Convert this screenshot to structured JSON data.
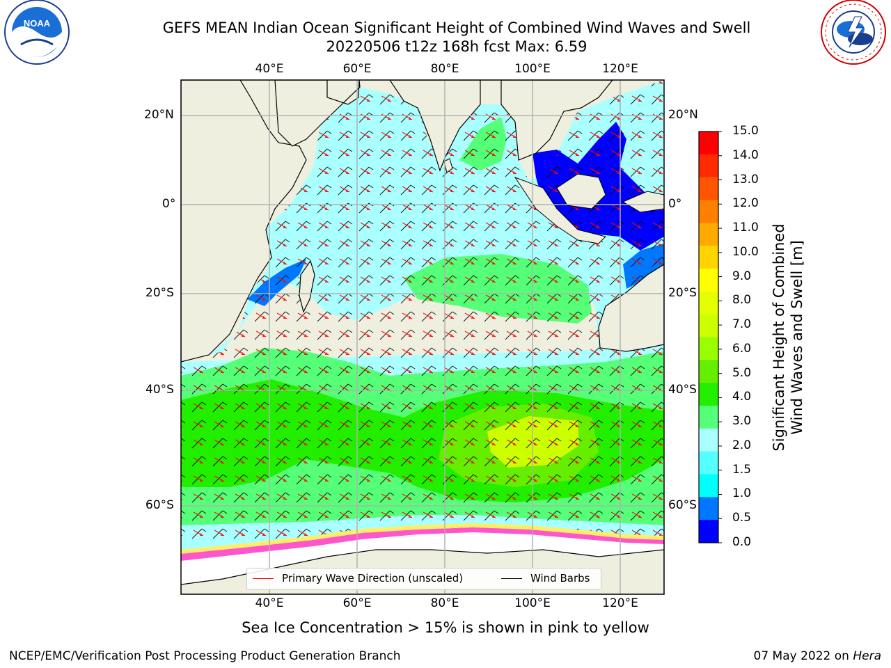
{
  "title": {
    "line1": "GEFS MEAN Indian Ocean Significant Height of Combined Wind Waves and Swell",
    "line2": "20220506 t12z 168h fcst   Max: 6.59"
  },
  "map": {
    "lon_labels": [
      "40°E",
      "60°E",
      "80°E",
      "100°E",
      "120°E"
    ],
    "lat_labels_left": [
      "20°N",
      "0°",
      "20°S",
      "40°S",
      "60°S"
    ],
    "lat_labels_right": [
      "20°N",
      "0°",
      "20°S",
      "40°S",
      "60°S"
    ],
    "land_color": "#efefdf",
    "ocean_base_color": "#aaffff"
  },
  "colorbar": {
    "label_line1": "Significant Height of Combined",
    "label_line2": "Wind Waves and Swell [m]",
    "ticks": [
      "15.0",
      "14.0",
      "13.0",
      "12.0",
      "11.0",
      "10.0",
      "9.0",
      "8.0",
      "7.0",
      "6.0",
      "5.0",
      "4.0",
      "3.0",
      "2.0",
      "1.5",
      "1.0",
      "0.5",
      "0.0"
    ],
    "colors_top_to_bottom": [
      "#ff0000",
      "#ff2a00",
      "#ff5500",
      "#ff7f00",
      "#ffaa00",
      "#ffd400",
      "#ffff00",
      "#e5ff00",
      "#ccff00",
      "#99ff00",
      "#66ee00",
      "#22ee00",
      "#55ff77",
      "#aaffff",
      "#55ffff",
      "#00ffff",
      "#0077ff",
      "#0000ff"
    ]
  },
  "legend": {
    "wave_label": "Primary Wave Direction (unscaled)",
    "wave_color": "#ff0000",
    "barb_label": "Wind Barbs",
    "barb_color": "#000000"
  },
  "caption": "Sea Ice Concentration > 15% is shown in pink to yellow",
  "footer": {
    "left": "NCEP/EMC/Verification Post Processing Product Generation Branch",
    "right_prefix": "07 May 2022 on ",
    "right_italic": "Hera"
  },
  "logos": {
    "left": "NOAA",
    "right_ring": "NATIONAL WEATHER SERVICE"
  }
}
